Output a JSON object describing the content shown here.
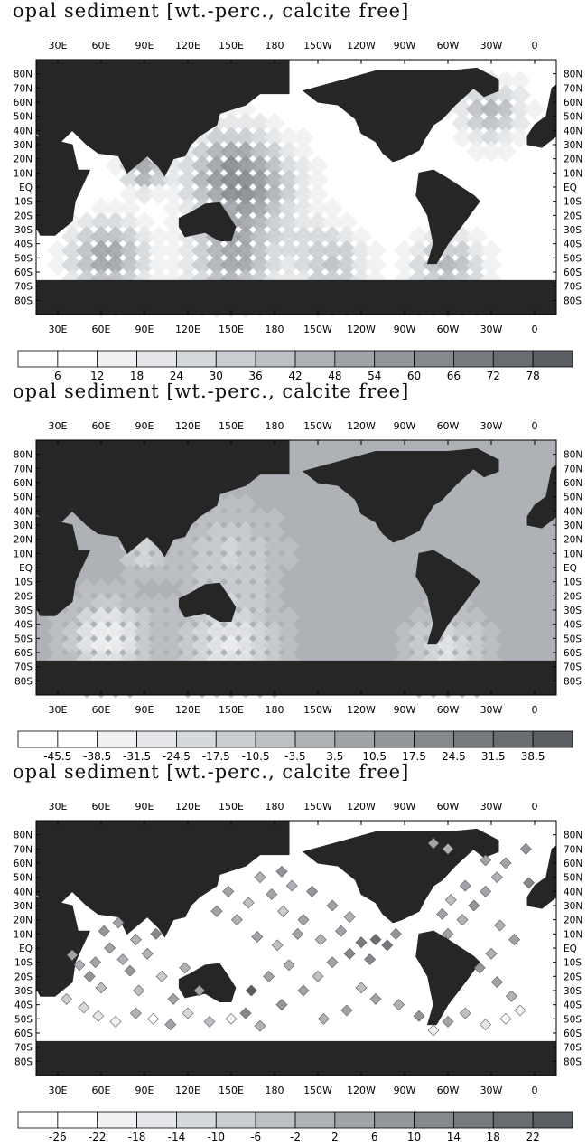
{
  "chart_data": [
    {
      "type": "heatmap",
      "title": "opal sediment [wt.-perc., calcite free]",
      "x_ticks": [
        "30E",
        "60E",
        "90E",
        "120E",
        "150E",
        "180",
        "150W",
        "120W",
        "90W",
        "60W",
        "30W",
        "0"
      ],
      "y_ticks": [
        "80N",
        "70N",
        "60N",
        "50N",
        "40N",
        "30N",
        "20N",
        "10N",
        "EQ",
        "10S",
        "20S",
        "30S",
        "40S",
        "50S",
        "60S",
        "70S",
        "80S"
      ],
      "colorbar_labels": [
        "6",
        "12",
        "18",
        "24",
        "30",
        "36",
        "42",
        "48",
        "54",
        "60",
        "66",
        "72",
        "78"
      ],
      "colorbar_colors": [
        "#ffffff",
        "#f0f1f2",
        "#e3e5e8",
        "#d6d9dc",
        "#c9ccd0",
        "#bcbfc3",
        "#aeb1b6",
        "#a0a4a9",
        "#93969b",
        "#85898e",
        "#777b80",
        "#696d72",
        "#5b5f64"
      ],
      "value_range": [
        0,
        84
      ],
      "land_color": "#262626",
      "mode": "field",
      "fields": [
        {
          "lon": 150,
          "lat": 10,
          "value": 40,
          "spread": 22
        },
        {
          "lon": 165,
          "lat": -5,
          "value": 30,
          "spread": 28
        },
        {
          "lon": 65,
          "lat": -50,
          "value": 55,
          "spread": 18
        },
        {
          "lon": 150,
          "lat": -55,
          "value": 45,
          "spread": 20
        },
        {
          "lon": 220,
          "lat": -55,
          "value": 35,
          "spread": 18
        },
        {
          "lon": 300,
          "lat": -58,
          "value": 40,
          "spread": 18
        },
        {
          "lon": 90,
          "lat": 12,
          "value": 50,
          "spread": 10
        },
        {
          "lon": 330,
          "lat": 52,
          "value": 40,
          "spread": 16
        }
      ]
    },
    {
      "type": "heatmap",
      "title": "opal sediment [wt.-perc., calcite free]",
      "x_ticks": [
        "30E",
        "60E",
        "90E",
        "120E",
        "150E",
        "180",
        "150W",
        "120W",
        "90W",
        "60W",
        "30W",
        "0"
      ],
      "y_ticks": [
        "80N",
        "70N",
        "60N",
        "50N",
        "40N",
        "30N",
        "20N",
        "10N",
        "EQ",
        "10S",
        "20S",
        "30S",
        "40S",
        "50S",
        "60S",
        "70S",
        "80S"
      ],
      "colorbar_labels": [
        "-45.5",
        "-38.5",
        "-31.5",
        "-24.5",
        "-17.5",
        "-10.5",
        "-3.5",
        "3.5",
        "10.5",
        "17.5",
        "24.5",
        "31.5",
        "38.5"
      ],
      "colorbar_colors": [
        "#ffffff",
        "#f0f1f2",
        "#e3e5e8",
        "#d6d9dc",
        "#c9ccd0",
        "#bcbfc3",
        "#aeb1b6",
        "#a0a4a9",
        "#93969b",
        "#85898e",
        "#777b80",
        "#696d72",
        "#5b5f64"
      ],
      "value_range": [
        -52.5,
        45.5
      ],
      "land_color": "#262626",
      "mode": "difference",
      "base_value": -3.5,
      "fields": [
        {
          "lon": 150,
          "lat": 10,
          "value": -20,
          "spread": 22
        },
        {
          "lon": 65,
          "lat": -50,
          "value": -40,
          "spread": 18
        },
        {
          "lon": 150,
          "lat": -55,
          "value": -35,
          "spread": 22
        },
        {
          "lon": 300,
          "lat": -60,
          "value": -30,
          "spread": 18
        },
        {
          "lon": 90,
          "lat": 12,
          "value": -25,
          "spread": 10
        }
      ]
    },
    {
      "type": "scatter",
      "title": "opal sediment [wt.-perc., calcite free]",
      "x_ticks": [
        "30E",
        "60E",
        "90E",
        "120E",
        "150E",
        "180",
        "150W",
        "120W",
        "90W",
        "60W",
        "30W",
        "0"
      ],
      "y_ticks": [
        "80N",
        "70N",
        "60N",
        "50N",
        "40N",
        "30N",
        "20N",
        "10N",
        "EQ",
        "10S",
        "20S",
        "30S",
        "40S",
        "50S",
        "60S",
        "70S",
        "80S"
      ],
      "colorbar_labels": [
        "-26",
        "-22",
        "-18",
        "-14",
        "-10",
        "-6",
        "-2",
        "2",
        "6",
        "10",
        "14",
        "18",
        "22"
      ],
      "colorbar_colors": [
        "#ffffff",
        "#f0f1f2",
        "#e3e5e8",
        "#d6d9dc",
        "#c9ccd0",
        "#bcbfc3",
        "#aeb1b6",
        "#a0a4a9",
        "#93969b",
        "#85898e",
        "#777b80",
        "#696d72",
        "#5b5f64"
      ],
      "value_range": [
        -30,
        26
      ],
      "land_color": "#262626",
      "mode": "stations",
      "points": [
        {
          "lon": 40,
          "lat": -5,
          "value": 4
        },
        {
          "lon": 45,
          "lat": -12,
          "value": -2
        },
        {
          "lon": 52,
          "lat": -20,
          "value": 8
        },
        {
          "lon": 60,
          "lat": -28,
          "value": -6
        },
        {
          "lon": 66,
          "lat": 0,
          "value": 2
        },
        {
          "lon": 75,
          "lat": -8,
          "value": -4
        },
        {
          "lon": 80,
          "lat": -16,
          "value": 6
        },
        {
          "lon": 86,
          "lat": -30,
          "value": -8
        },
        {
          "lon": 92,
          "lat": -4,
          "value": 0
        },
        {
          "lon": 98,
          "lat": 10,
          "value": 10
        },
        {
          "lon": 102,
          "lat": -20,
          "value": -10
        },
        {
          "lon": 110,
          "lat": -36,
          "value": 2
        },
        {
          "lon": 48,
          "lat": -42,
          "value": -14
        },
        {
          "lon": 58,
          "lat": -48,
          "value": -18
        },
        {
          "lon": 70,
          "lat": -52,
          "value": -22
        },
        {
          "lon": 84,
          "lat": -46,
          "value": -2
        },
        {
          "lon": 96,
          "lat": -50,
          "value": -26
        },
        {
          "lon": 108,
          "lat": -54,
          "value": 4
        },
        {
          "lon": 120,
          "lat": -46,
          "value": -14
        },
        {
          "lon": 135,
          "lat": -52,
          "value": -6
        },
        {
          "lon": 150,
          "lat": -50,
          "value": -22
        },
        {
          "lon": 160,
          "lat": -46,
          "value": 10
        },
        {
          "lon": 170,
          "lat": -55,
          "value": -2
        },
        {
          "lon": 185,
          "lat": -40,
          "value": 6
        },
        {
          "lon": 200,
          "lat": -30,
          "value": 2
        },
        {
          "lon": 210,
          "lat": -20,
          "value": -6
        },
        {
          "lon": 220,
          "lat": -10,
          "value": 4
        },
        {
          "lon": 232,
          "lat": -4,
          "value": 10
        },
        {
          "lon": 240,
          "lat": 4,
          "value": 14
        },
        {
          "lon": 250,
          "lat": 6,
          "value": 18
        },
        {
          "lon": 258,
          "lat": 2,
          "value": 14
        },
        {
          "lon": 246,
          "lat": -8,
          "value": 10
        },
        {
          "lon": 264,
          "lat": 10,
          "value": 6
        },
        {
          "lon": 226,
          "lat": 12,
          "value": 2
        },
        {
          "lon": 212,
          "lat": 6,
          "value": -2
        },
        {
          "lon": 196,
          "lat": 10,
          "value": 2
        },
        {
          "lon": 182,
          "lat": 2,
          "value": -6
        },
        {
          "lon": 168,
          "lat": 8,
          "value": 2
        },
        {
          "lon": 154,
          "lat": 20,
          "value": -2
        },
        {
          "lon": 140,
          "lat": 26,
          "value": 2
        },
        {
          "lon": 162,
          "lat": 32,
          "value": -6
        },
        {
          "lon": 178,
          "lat": 38,
          "value": 2
        },
        {
          "lon": 192,
          "lat": 44,
          "value": -2
        },
        {
          "lon": 206,
          "lat": 40,
          "value": 6
        },
        {
          "lon": 220,
          "lat": 30,
          "value": 2
        },
        {
          "lon": 232,
          "lat": 22,
          "value": -2
        },
        {
          "lon": 186,
          "lat": 26,
          "value": -10
        },
        {
          "lon": 200,
          "lat": 20,
          "value": 2
        },
        {
          "lon": 148,
          "lat": 40,
          "value": 2
        },
        {
          "lon": 170,
          "lat": 50,
          "value": -2
        },
        {
          "lon": 185,
          "lat": 54,
          "value": 6
        },
        {
          "lon": 300,
          "lat": 10,
          "value": 2
        },
        {
          "lon": 310,
          "lat": 20,
          "value": -2
        },
        {
          "lon": 318,
          "lat": 30,
          "value": 6
        },
        {
          "lon": 326,
          "lat": 40,
          "value": 2
        },
        {
          "lon": 334,
          "lat": 50,
          "value": -2
        },
        {
          "lon": 340,
          "lat": 60,
          "value": 2
        },
        {
          "lon": 312,
          "lat": 44,
          "value": 2
        },
        {
          "lon": 302,
          "lat": 34,
          "value": -6
        },
        {
          "lon": 296,
          "lat": 24,
          "value": 2
        },
        {
          "lon": 336,
          "lat": 16,
          "value": -2
        },
        {
          "lon": 346,
          "lat": 6,
          "value": 2
        },
        {
          "lon": 330,
          "lat": -4,
          "value": -2
        },
        {
          "lon": 322,
          "lat": -14,
          "value": 6
        },
        {
          "lon": 334,
          "lat": -24,
          "value": 2
        },
        {
          "lon": 344,
          "lat": -34,
          "value": -2
        },
        {
          "lon": 350,
          "lat": -44,
          "value": -22
        },
        {
          "lon": 340,
          "lat": -50,
          "value": -26
        },
        {
          "lon": 326,
          "lat": -54,
          "value": -18
        },
        {
          "lon": 312,
          "lat": -46,
          "value": -6
        },
        {
          "lon": 300,
          "lat": -52,
          "value": 2
        },
        {
          "lon": 290,
          "lat": -58,
          "value": -22
        },
        {
          "lon": 280,
          "lat": -48,
          "value": 6
        },
        {
          "lon": 266,
          "lat": -40,
          "value": -2
        },
        {
          "lon": 250,
          "lat": -36,
          "value": 2
        },
        {
          "lon": 240,
          "lat": -28,
          "value": -6
        },
        {
          "lon": 230,
          "lat": -44,
          "value": 2
        },
        {
          "lon": 214,
          "lat": -50,
          "value": -2
        },
        {
          "lon": 356,
          "lat": 46,
          "value": 10
        },
        {
          "lon": 290,
          "lat": 74,
          "value": 2
        },
        {
          "lon": 300,
          "lat": 70,
          "value": -2
        },
        {
          "lon": 354,
          "lat": 70,
          "value": 6
        },
        {
          "lon": 326,
          "lat": 62,
          "value": 2
        },
        {
          "lon": 36,
          "lat": -36,
          "value": -10
        },
        {
          "lon": 128,
          "lat": -30,
          "value": 2
        },
        {
          "lon": 118,
          "lat": -14,
          "value": -2
        },
        {
          "lon": 62,
          "lat": 12,
          "value": 6
        },
        {
          "lon": 72,
          "lat": 18,
          "value": 2
        },
        {
          "lon": 84,
          "lat": 6,
          "value": -2
        },
        {
          "lon": 56,
          "lat": -10,
          "value": 2
        },
        {
          "lon": 164,
          "lat": -30,
          "value": 22
        },
        {
          "lon": 176,
          "lat": -20,
          "value": 2
        },
        {
          "lon": 190,
          "lat": -12,
          "value": -2
        }
      ]
    }
  ]
}
